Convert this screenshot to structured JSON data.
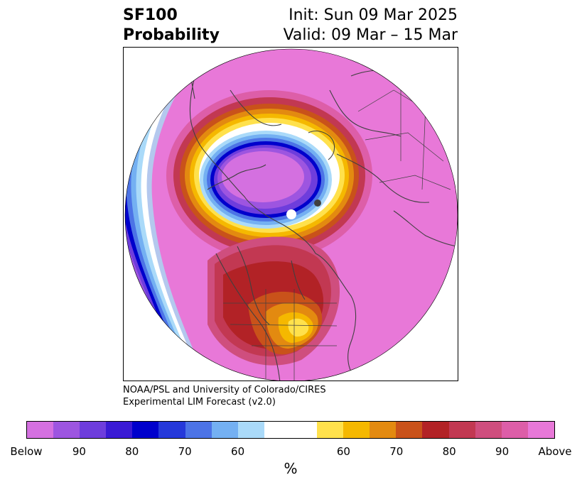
{
  "header": {
    "title_line1": "SF100",
    "title_line2": "Probability",
    "init_text": "Init: Sun 09 Mar 2025",
    "valid_text": "Valid: 09 Mar – 15 Mar"
  },
  "credit": {
    "line1": "NOAA/PSL and University of Colorado/CIRES",
    "line2": "Experimental LIM Forecast (v2.0)"
  },
  "colorbar": {
    "units": "%",
    "tick_labels": [
      "Below",
      "90",
      "80",
      "70",
      "60",
      "60",
      "70",
      "80",
      "90",
      "Above"
    ],
    "colors": [
      "#d470e0",
      "#9d55e0",
      "#6e3ddc",
      "#3a1ad4",
      "#0000cc",
      "#2538da",
      "#4c73e6",
      "#74b0f2",
      "#aadaf9",
      "#ffffff",
      "#ffe14c",
      "#f5b800",
      "#e38a10",
      "#c9521a",
      "#b22226",
      "#c23852",
      "#cf4e7e",
      "#dd5ea8",
      "#e878d8"
    ]
  },
  "map": {
    "projection": "north polar stereographic",
    "colors": {
      "above_max": "#e878d8",
      "above_90": "#dd5ea8",
      "above_80": "#cf4e7e",
      "above_75": "#c23852",
      "above_70": "#b22226",
      "above_65": "#c9521a",
      "above_60": "#e38a10",
      "above_55": "#f5b800",
      "above_50": "#ffe14c",
      "neutral": "#ffffff",
      "below_50": "#aadaf9",
      "below_55": "#74b0f2",
      "below_60": "#4c73e6",
      "below_65": "#2538da",
      "below_70": "#0000cc",
      "below_80": "#3a1ad4",
      "below_85": "#6e3ddc",
      "below_90": "#9d55e0",
      "below_max": "#d470e0",
      "coastline": "#404040"
    }
  }
}
